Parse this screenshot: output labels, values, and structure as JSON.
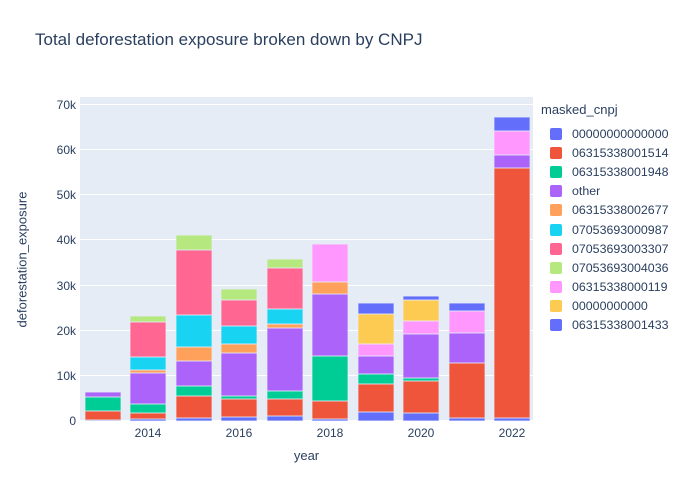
{
  "chart_data": {
    "type": "bar",
    "stacked": true,
    "title": "Total deforestation exposure broken down by CNPJ",
    "xlabel": "year",
    "ylabel": "deforestation_exposure",
    "legend_title": "masked_cnpj",
    "plot_bg_color": "#E5ECF6",
    "text_color": "#2a3f5f",
    "grid": true,
    "legend_position": "right",
    "ylim": [
      0,
      70000
    ],
    "y_tick_values": [
      0,
      10000,
      20000,
      30000,
      40000,
      50000,
      60000,
      70000
    ],
    "y_tick_labels": [
      "0",
      "10k",
      "20k",
      "30k",
      "40k",
      "50k",
      "60k",
      "70k"
    ],
    "categories": [
      2013,
      2014,
      2015,
      2016,
      2017,
      2018,
      2019,
      2020,
      2021,
      2022
    ],
    "x_tick_indices": [
      1,
      3,
      5,
      7,
      9
    ],
    "x_tick_labels": [
      "2014",
      "2016",
      "2018",
      "2020",
      "2022"
    ],
    "series": [
      {
        "name": "00000000000000",
        "color": "#636EFA",
        "values": [
          150,
          500,
          700,
          900,
          1100,
          500,
          2000,
          1800,
          700,
          700
        ]
      },
      {
        "name": "06315338001514",
        "color": "#EF553B",
        "values": [
          2000,
          1300,
          4900,
          4000,
          3800,
          3900,
          6200,
          7100,
          12200,
          55300
        ]
      },
      {
        "name": "06315338001948",
        "color": "#00CC96",
        "values": [
          3100,
          2000,
          2200,
          700,
          1800,
          10000,
          2200,
          600,
          0,
          0
        ]
      },
      {
        "name": "other",
        "color": "#AB63FA",
        "values": [
          1200,
          6900,
          5500,
          9500,
          14000,
          13800,
          4000,
          9800,
          6700,
          2900
        ]
      },
      {
        "name": "06315338002677",
        "color": "#FFA15A",
        "values": [
          0,
          500,
          3100,
          2000,
          900,
          2500,
          0,
          0,
          0,
          0
        ]
      },
      {
        "name": "07053693000987",
        "color": "#19D3F3",
        "values": [
          0,
          2900,
          7200,
          4000,
          3300,
          0,
          0,
          0,
          0,
          0
        ]
      },
      {
        "name": "07053693003307",
        "color": "#FF6692",
        "values": [
          0,
          7900,
          14400,
          5800,
          9100,
          0,
          0,
          0,
          0,
          0
        ]
      },
      {
        "name": "07053693004036",
        "color": "#B6E880",
        "values": [
          0,
          1300,
          3300,
          2400,
          2000,
          0,
          0,
          0,
          0,
          0
        ]
      },
      {
        "name": "06315338000119",
        "color": "#FF97FF",
        "values": [
          0,
          0,
          0,
          0,
          0,
          8600,
          2700,
          2900,
          4800,
          5400
        ]
      },
      {
        "name": "00000000000",
        "color": "#FECB52",
        "values": [
          0,
          0,
          0,
          0,
          0,
          0,
          6700,
          4700,
          0,
          0
        ]
      },
      {
        "name": "06315338001433",
        "color": "#636EFA",
        "values": [
          0,
          0,
          0,
          0,
          0,
          0,
          2400,
          700,
          1800,
          3000
        ]
      }
    ]
  }
}
